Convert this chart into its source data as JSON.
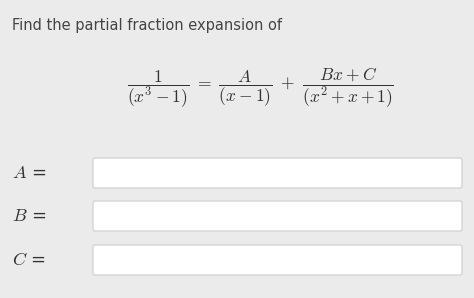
{
  "background_color": "#ebebeb",
  "title_text": "Find the partial fraction expansion of",
  "title_fontsize": 10.5,
  "title_color": "#444444",
  "equation_fontsize": 12.5,
  "equation_color": "#333333",
  "label_fontsize": 13,
  "label_color": "#333333",
  "box_facecolor": "#ffffff",
  "box_edgecolor": "#cccccc",
  "fig_width": 4.74,
  "fig_height": 2.98,
  "dpi": 100
}
